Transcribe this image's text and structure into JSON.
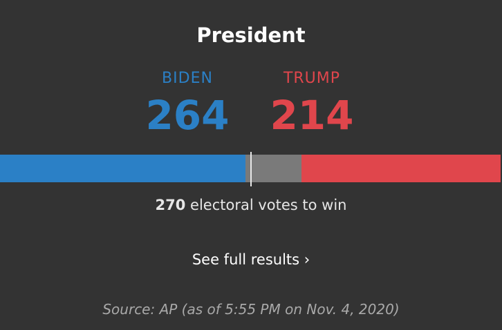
{
  "race": {
    "title": "President",
    "threshold_number": "270",
    "threshold_text": "electoral votes to win",
    "link_label": "See full results ›",
    "source": "Source: AP (as of 5:55 PM on Nov. 4, 2020)",
    "total_votes": 538,
    "win_votes": 270
  },
  "candidates": [
    {
      "name": "BIDEN",
      "votes": "264",
      "votes_value": 264,
      "color": "#2b80c6"
    },
    {
      "name": "TRUMP",
      "votes": "214",
      "votes_value": 214,
      "color": "#e0464c"
    }
  ],
  "colors": {
    "background": "#333333",
    "uncalled": "#7a7a7a"
  }
}
